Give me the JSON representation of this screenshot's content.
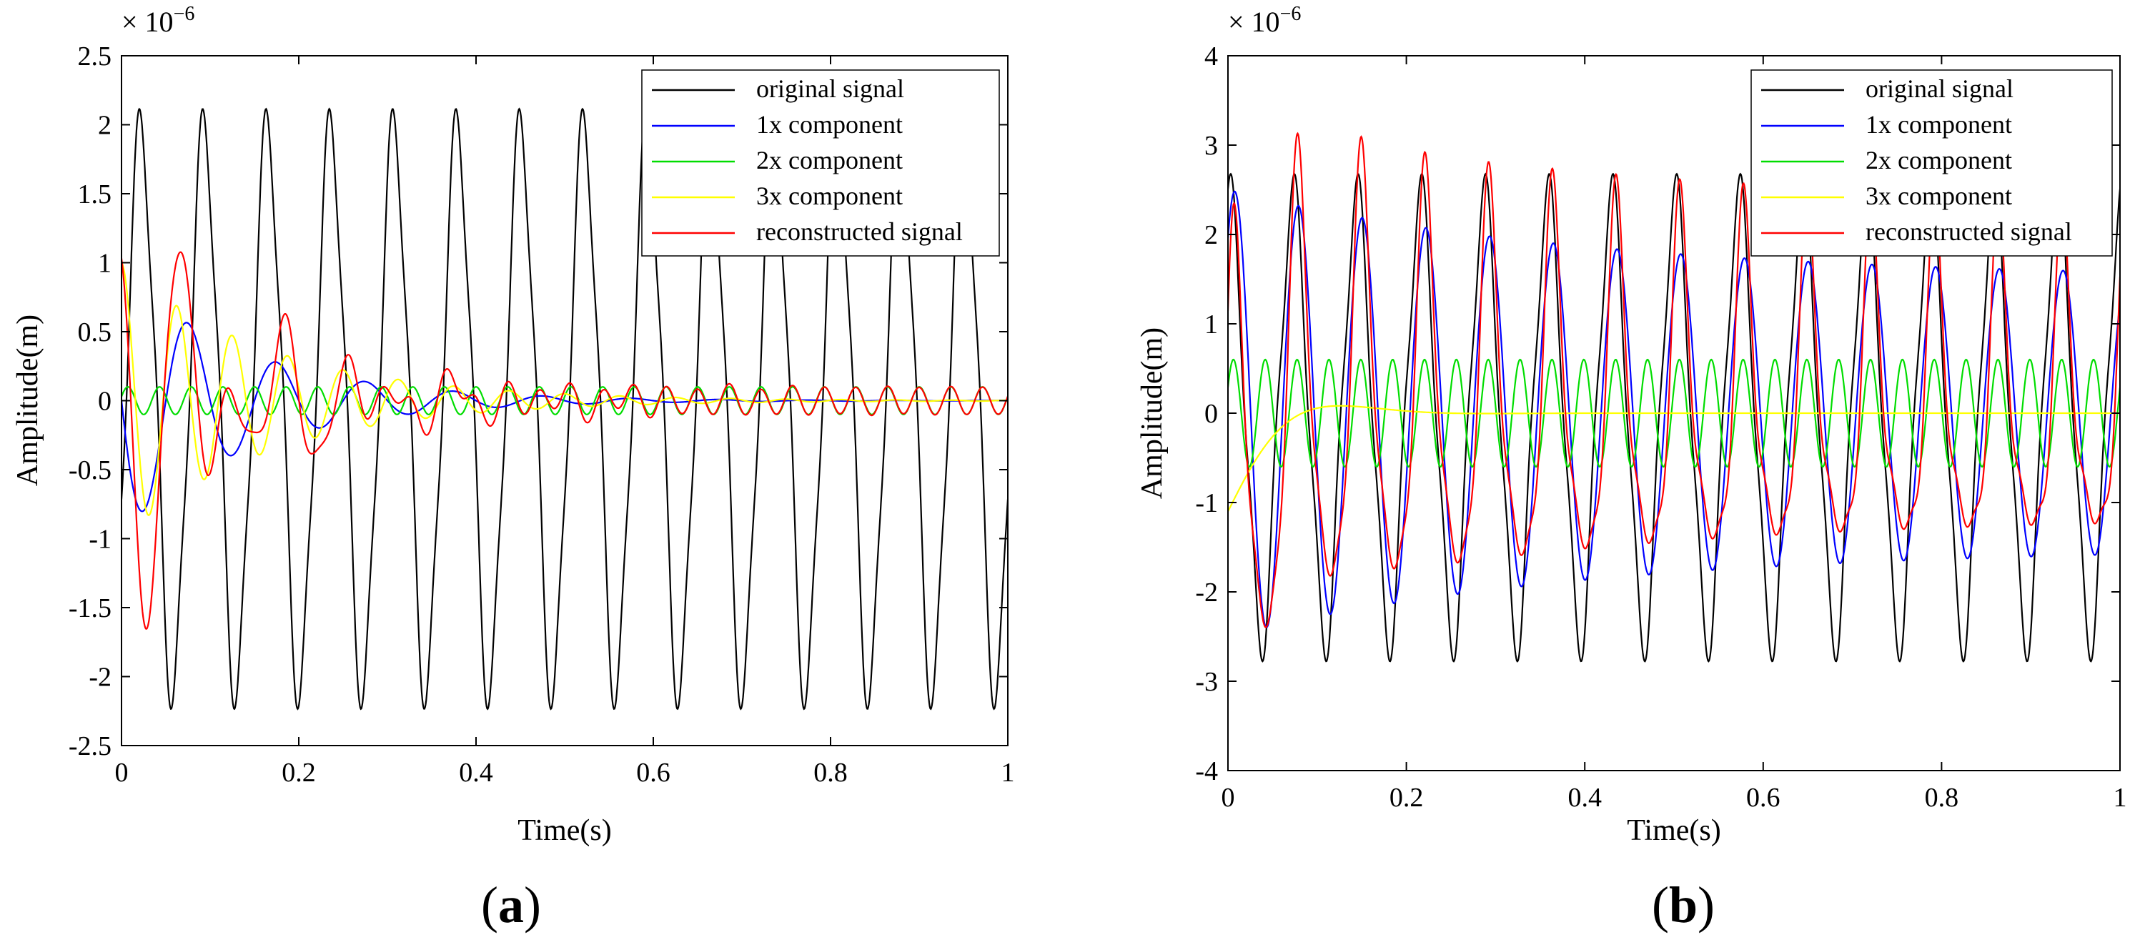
{
  "figure": {
    "panels": [
      {
        "label_letter": "a",
        "label_open": "(",
        "label_close": ")"
      },
      {
        "label_letter": "b",
        "label_open": "(",
        "label_close": ")"
      }
    ]
  },
  "chart_data": [
    {
      "type": "line",
      "panel": "a",
      "xlabel": "Time(s)",
      "ylabel": "Amplitude(m)",
      "y_scale_prefix": "× 10",
      "y_scale_exponent": "−6",
      "xlim": [
        0,
        1
      ],
      "ylim": [
        -2.5,
        2.5
      ],
      "xticks": [
        0,
        0.2,
        0.4,
        0.6,
        0.8,
        1
      ],
      "xtick_labels": [
        "0",
        "0.2",
        "0.4",
        "0.6",
        "0.8",
        "1"
      ],
      "yticks": [
        -2.5,
        -2,
        -1.5,
        -1,
        -0.5,
        0,
        0.5,
        1,
        1.5,
        2,
        2.5
      ],
      "ytick_labels": [
        "-2.5",
        "-2",
        "-1.5",
        "-1",
        "-0.5",
        "0",
        "0.5",
        "1",
        "1.5",
        "2",
        "2.5"
      ],
      "legend_position": "top-right",
      "grid": false,
      "series": [
        {
          "name": "original signal",
          "color": "#000000",
          "type": "periodic",
          "mean": -0.06,
          "amp1": 2.0,
          "freq1": 14,
          "phase1": -0.35,
          "amp2": 0.22,
          "freq2": 42,
          "phase2": 3.0
        },
        {
          "name": "1x component",
          "color": "#0000ff",
          "type": "decay",
          "amp": 0.95,
          "freq": 10,
          "decay": 7,
          "phase": 3.14
        },
        {
          "name": "2x component",
          "color": "#00dd00",
          "type": "periodic",
          "mean": 0,
          "amp1": 0.1,
          "freq1": 28,
          "phase1": 0.3,
          "amp2": 0,
          "freq2": 1,
          "phase2": 0
        },
        {
          "name": "3x component",
          "color": "#ffff00",
          "type": "decay",
          "amp": 1.0,
          "freq": 16,
          "decay": 6,
          "phase": 1.57
        },
        {
          "name": "reconstructed signal",
          "color": "#ff0000",
          "type": "sum",
          "sum_of": [
            1,
            2,
            3
          ]
        }
      ]
    },
    {
      "type": "line",
      "panel": "b",
      "xlabel": "Time(s)",
      "ylabel": "Amplitude(m)",
      "y_scale_prefix": "× 10",
      "y_scale_exponent": "−6",
      "xlim": [
        0,
        1
      ],
      "ylim": [
        -4,
        4
      ],
      "xticks": [
        0,
        0.2,
        0.4,
        0.6,
        0.8,
        1
      ],
      "xtick_labels": [
        "0",
        "0.2",
        "0.4",
        "0.6",
        "0.8",
        "1"
      ],
      "yticks": [
        -4,
        -3,
        -2,
        -1,
        0,
        1,
        2,
        3,
        4
      ],
      "ytick_labels": [
        "-4",
        "-3",
        "-2",
        "-1",
        "0",
        "1",
        "2",
        "3",
        "4"
      ],
      "legend_position": "top-right",
      "grid": false,
      "series": [
        {
          "name": "original signal",
          "color": "#000000",
          "type": "periodic",
          "mean": -0.05,
          "amp1": 2.45,
          "freq1": 14,
          "phase1": 1.4,
          "amp2": 0.3,
          "freq2": 42,
          "phase2": 0.5
        },
        {
          "name": "1x component",
          "color": "#0000ff",
          "type": "decay_offset",
          "amp": 2.5,
          "floor": 1.5,
          "freq": 14,
          "decay": 2.5,
          "phase": 0.9
        },
        {
          "name": "2x component",
          "color": "#00dd00",
          "type": "periodic",
          "mean": 0,
          "amp1": 0.6,
          "freq1": 28,
          "phase1": 0.5,
          "amp2": 0,
          "freq2": 1,
          "phase2": 0
        },
        {
          "name": "3x component",
          "color": "#ffff00",
          "type": "decay",
          "amp": 1.1,
          "freq": 3,
          "decay": 18,
          "phase": -1.57
        },
        {
          "name": "reconstructed signal",
          "color": "#ff0000",
          "type": "sum",
          "sum_of": [
            1,
            2,
            3
          ],
          "ripple_amp": 0.25,
          "ripple_freq": 42
        }
      ]
    }
  ]
}
